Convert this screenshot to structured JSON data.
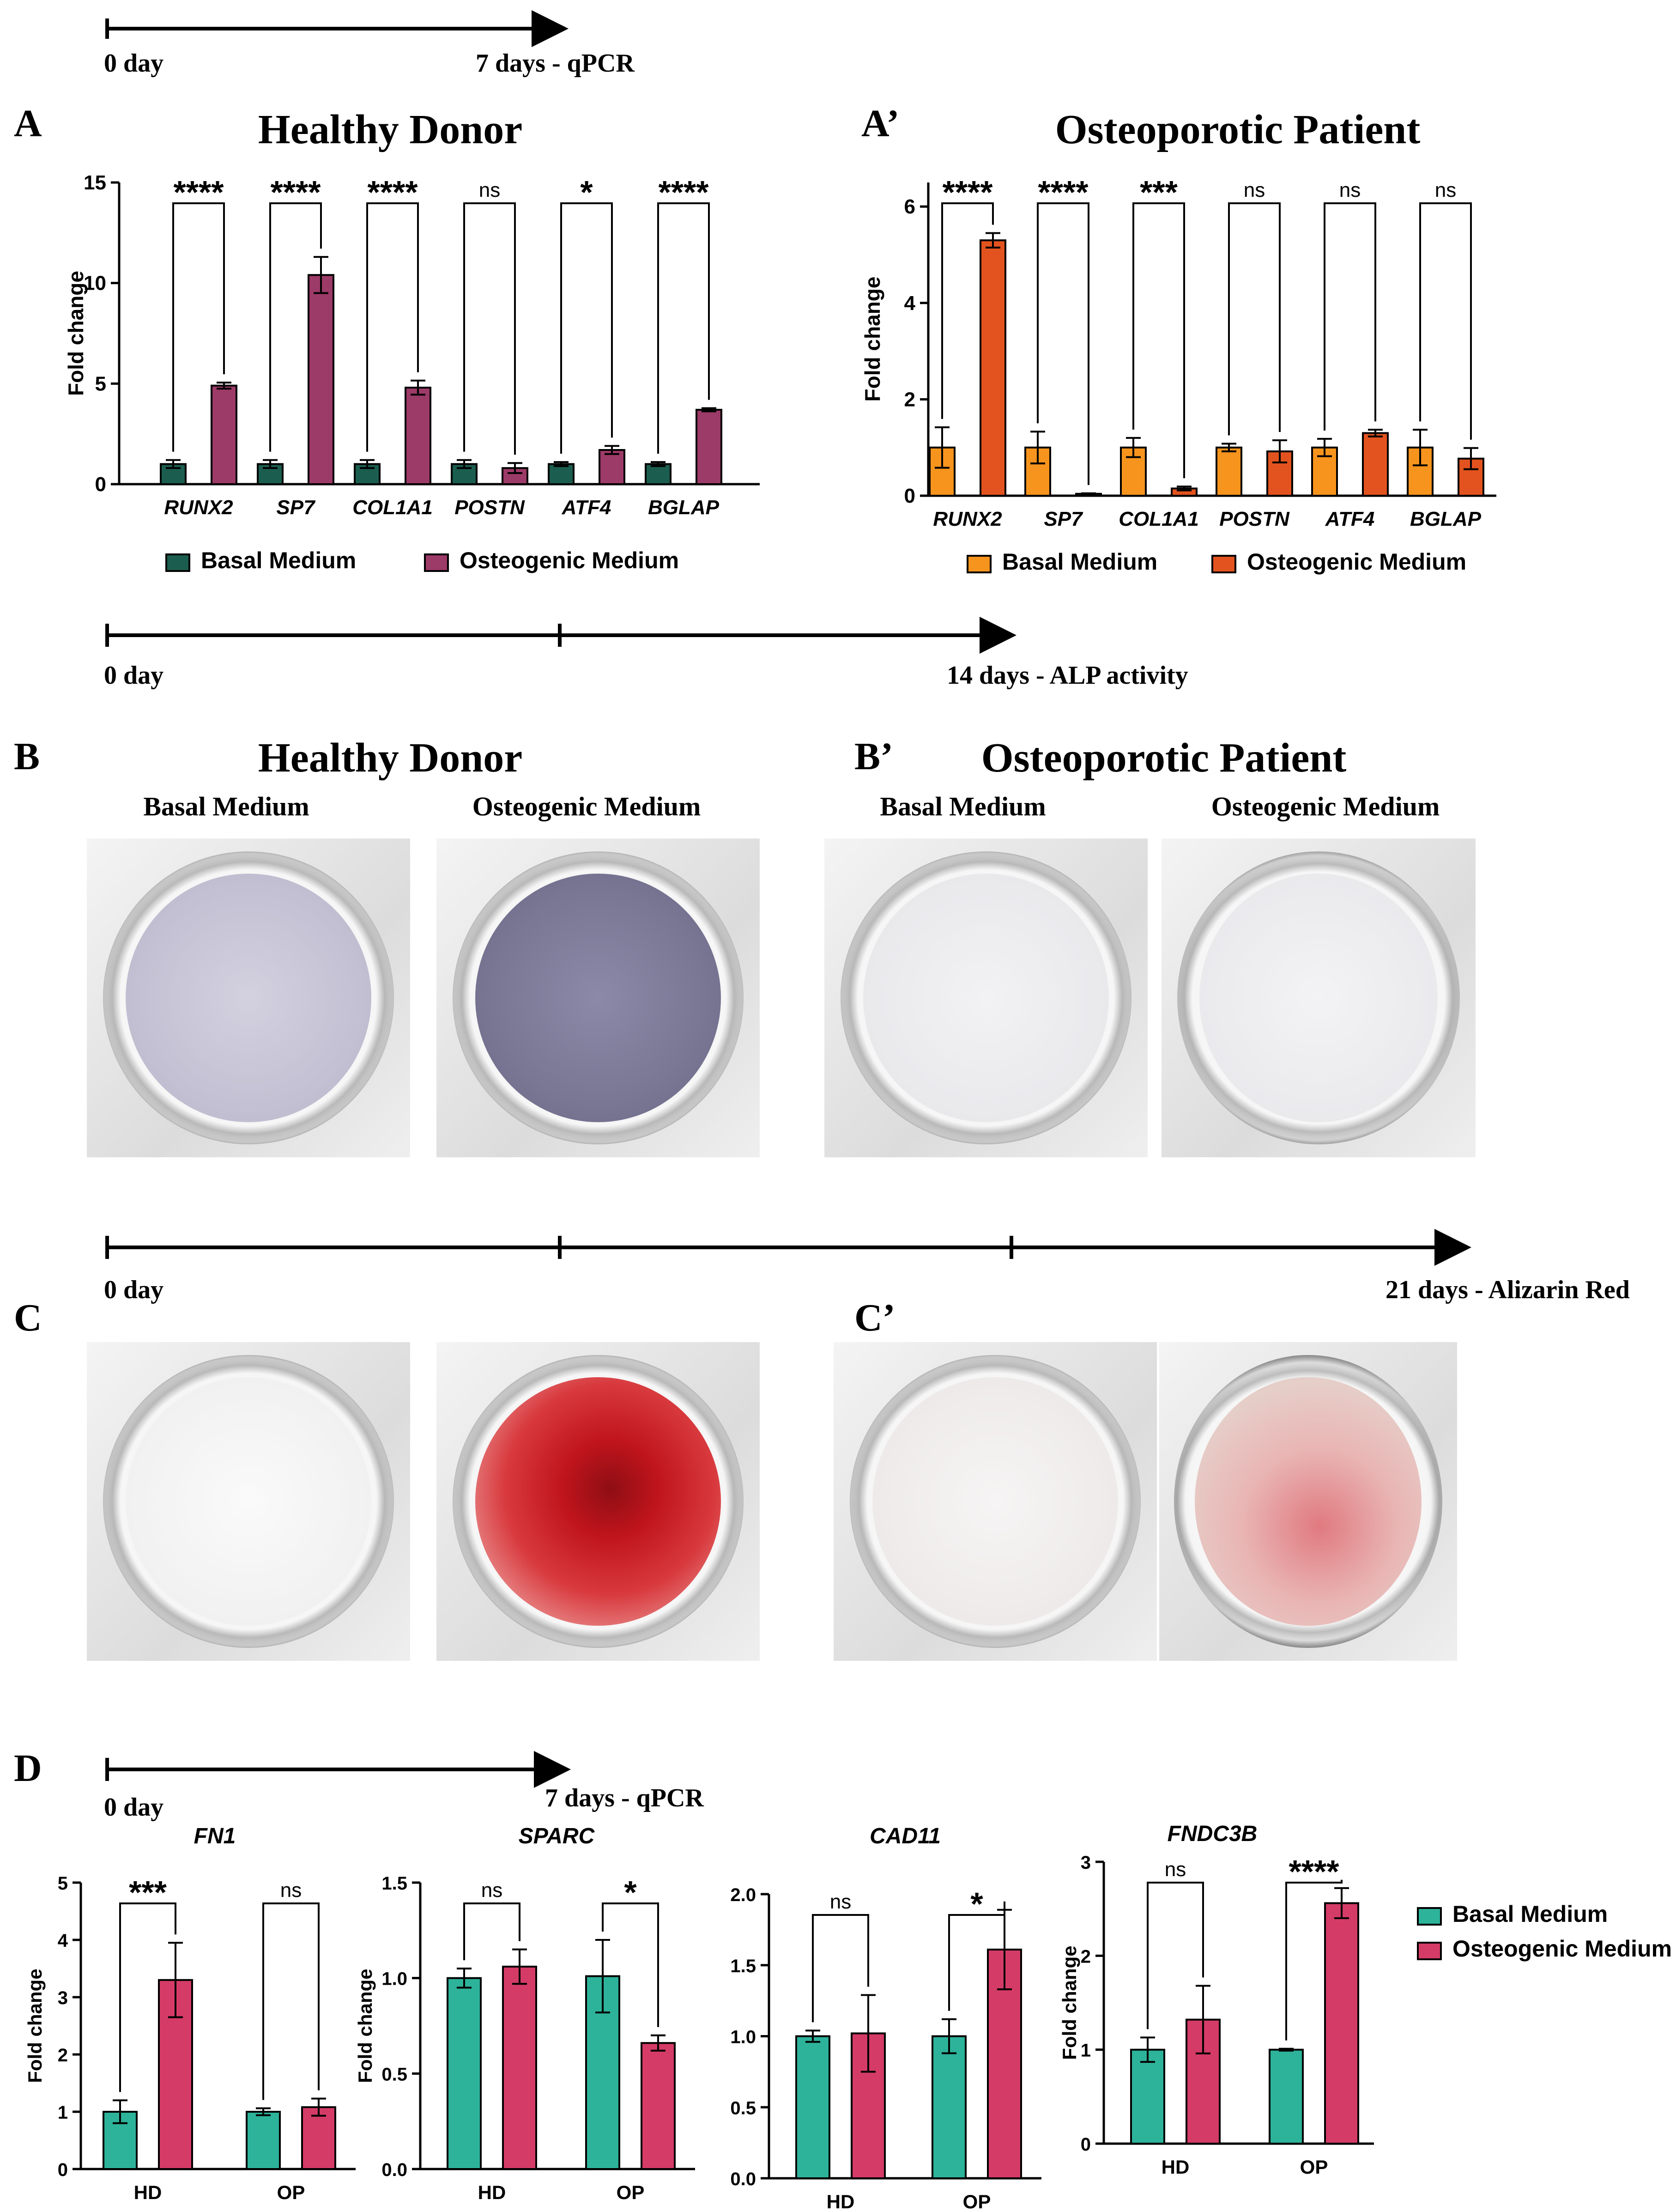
{
  "timelines": {
    "t1": {
      "start": "0 day",
      "end": "7 days - qPCR"
    },
    "t2": {
      "start": "0 day",
      "end": "14 days - ALP activity"
    },
    "t3": {
      "start": "0 day",
      "end": "21 days - Alizarin Red"
    },
    "t4": {
      "start": "0 day",
      "end": "7 days - qPCR"
    }
  },
  "panels": {
    "A": {
      "label": "A",
      "title": "Healthy Donor"
    },
    "A2": {
      "label": "A’",
      "title": "Osteoporotic Patient"
    },
    "B": {
      "label": "B",
      "title": "Healthy Donor",
      "sub1": "Basal Medium",
      "sub2": "Osteogenic Medium"
    },
    "B2": {
      "label": "B’",
      "title": "Osteoporotic Patient",
      "sub1": "Basal Medium",
      "sub2": "Osteogenic Medium"
    },
    "C": {
      "label": "C"
    },
    "C2": {
      "label": "C’"
    },
    "D": {
      "label": "D"
    }
  },
  "legends": {
    "A": [
      "Basal Medium",
      "Osteogenic Medium"
    ],
    "A2": [
      "Basal Medium",
      "Osteogenic Medium"
    ],
    "D": [
      "Basal Medium",
      "Osteogenic Medium"
    ]
  },
  "colors": {
    "A_basal": "#1b5e4f",
    "A_osteo": "#9c3a68",
    "A2_basal": "#f7941d",
    "A2_osteo": "#e3531f",
    "D_basal": "#2db39a",
    "D_osteo": "#d43b67"
  },
  "chart_data": [
    {
      "id": "A",
      "type": "bar",
      "title": "Healthy Donor",
      "ylabel": "Fold change",
      "ylim": [
        0,
        15
      ],
      "yticks": [
        0,
        5,
        10,
        15
      ],
      "categories": [
        "RUNX2",
        "SP7",
        "COL1A1",
        "POSTN",
        "ATF4",
        "BGLAP"
      ],
      "series": [
        {
          "name": "Basal Medium",
          "values": [
            1.0,
            1.0,
            1.0,
            1.0,
            1.0,
            1.0
          ],
          "errors": [
            0.2,
            0.2,
            0.2,
            0.2,
            0.1,
            0.1
          ]
        },
        {
          "name": "Osteogenic Medium",
          "values": [
            4.9,
            10.4,
            4.8,
            0.8,
            1.7,
            3.7
          ],
          "errors": [
            0.15,
            0.9,
            0.35,
            0.25,
            0.2,
            0.08
          ]
        }
      ],
      "significance": [
        "****",
        "****",
        "****",
        "ns",
        "*",
        "****"
      ]
    },
    {
      "id": "A2",
      "type": "bar",
      "title": "Osteoporotic Patient",
      "ylabel": "Fold change",
      "ylim": [
        0,
        6.5
      ],
      "yticks": [
        0,
        2,
        4,
        6
      ],
      "categories": [
        "RUNX2",
        "SP7",
        "COL1A1",
        "POSTN",
        "ATF4",
        "BGLAP"
      ],
      "series": [
        {
          "name": "Basal Medium",
          "values": [
            1.0,
            1.0,
            1.0,
            1.0,
            1.0,
            1.0
          ],
          "errors": [
            0.42,
            0.33,
            0.2,
            0.08,
            0.18,
            0.37
          ]
        },
        {
          "name": "Osteogenic Medium",
          "values": [
            5.3,
            0.04,
            0.15,
            0.92,
            1.3,
            0.77
          ],
          "errors": [
            0.15,
            0.01,
            0.04,
            0.23,
            0.07,
            0.22
          ]
        }
      ],
      "significance": [
        "****",
        "****",
        "***",
        "ns",
        "ns",
        "ns"
      ]
    },
    {
      "id": "D1",
      "type": "bar",
      "title": "FN1",
      "ylabel": "Fold change",
      "ylim": [
        0,
        5
      ],
      "yticks": [
        0,
        1,
        2,
        3,
        4,
        5
      ],
      "categories": [
        "HD",
        "OP"
      ],
      "series": [
        {
          "name": "Basal Medium",
          "values": [
            1.0,
            1.0
          ],
          "errors": [
            0.2,
            0.06
          ]
        },
        {
          "name": "Osteogenic Medium",
          "values": [
            3.3,
            1.08
          ],
          "errors": [
            0.65,
            0.15
          ]
        }
      ],
      "significance": [
        "***",
        "ns"
      ]
    },
    {
      "id": "D2",
      "type": "bar",
      "title": "SPARC",
      "ylabel": "Fold change",
      "ylim": [
        0,
        1.5
      ],
      "yticks": [
        0.0,
        0.5,
        1.0,
        1.5
      ],
      "categories": [
        "HD",
        "OP"
      ],
      "series": [
        {
          "name": "Basal Medium",
          "values": [
            1.0,
            1.01
          ],
          "errors": [
            0.05,
            0.19
          ]
        },
        {
          "name": "Osteogenic Medium",
          "values": [
            1.06,
            0.66
          ],
          "errors": [
            0.09,
            0.04
          ]
        }
      ],
      "significance": [
        "ns",
        "*"
      ]
    },
    {
      "id": "D3",
      "type": "bar",
      "title": "CAD11",
      "ylabel": "",
      "ylim": [
        0,
        2.0
      ],
      "yticks": [
        0.0,
        0.5,
        1.0,
        1.5,
        2.0
      ],
      "categories": [
        "HD",
        "OP"
      ],
      "series": [
        {
          "name": "Basal Medium",
          "values": [
            1.0,
            1.0
          ],
          "errors": [
            0.04,
            0.12
          ]
        },
        {
          "name": "Osteogenic Medium",
          "values": [
            1.02,
            1.61
          ],
          "errors": [
            0.27,
            0.28
          ]
        }
      ],
      "significance": [
        "ns",
        "*"
      ]
    },
    {
      "id": "D4",
      "type": "bar",
      "title": "FNDC3B",
      "ylabel": "Fold change",
      "ylim": [
        0,
        3
      ],
      "yticks": [
        0,
        1,
        2,
        3
      ],
      "categories": [
        "HD",
        "OP"
      ],
      "series": [
        {
          "name": "Basal Medium",
          "values": [
            1.0,
            1.0
          ],
          "errors": [
            0.13,
            0.01
          ]
        },
        {
          "name": "Osteogenic Medium",
          "values": [
            1.32,
            2.56
          ],
          "errors": [
            0.36,
            0.16
          ]
        }
      ],
      "significance": [
        "ns",
        "****"
      ]
    }
  ]
}
